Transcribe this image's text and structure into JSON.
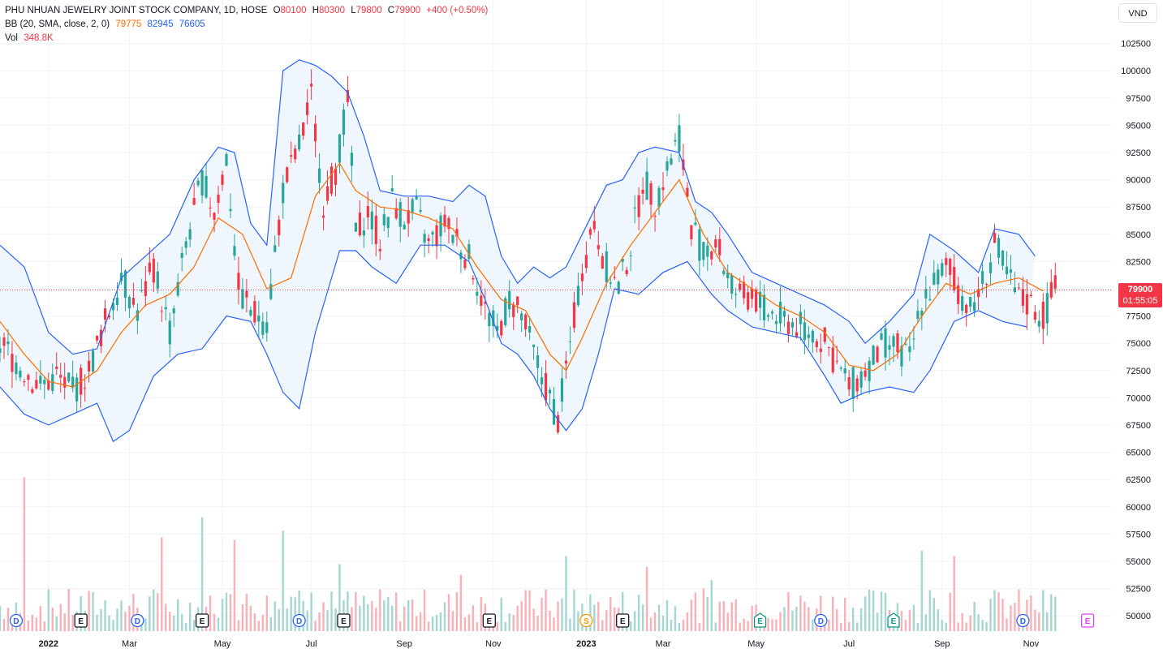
{
  "legend": {
    "title": "PHU NHUAN JEWELRY JOINT STOCK COMPANY, 1D, HOSE",
    "o_label": "O",
    "o": "80100",
    "h_label": "H",
    "h": "80300",
    "l_label": "L",
    "l": "79800",
    "c_label": "C",
    "c": "79900",
    "change": "+400 (+0.50%)",
    "bb_label": "BB (20, SMA, close, 2, 0)",
    "bb_basis": "79775",
    "bb_upper": "82945",
    "bb_lower": "76605",
    "vol_label": "Vol",
    "vol": "348.8K"
  },
  "currency": "VND",
  "last_price": {
    "price": "79900",
    "countdown": "01:55:05"
  },
  "colors": {
    "up": "#26a69a",
    "down": "#f23645",
    "bb_band": "#2962ff",
    "bb_basis": "#ff6d00",
    "band_fill": "#f0f6fd"
  },
  "chart_data": {
    "type": "candlestick",
    "y_ticks": [
      "50000",
      "52500",
      "55000",
      "57500",
      "60000",
      "62500",
      "65000",
      "67500",
      "70000",
      "72500",
      "75000",
      "77500",
      "80000",
      "82500",
      "85000",
      "87500",
      "90000",
      "92500",
      "95000",
      "97500",
      "100000",
      "102500"
    ],
    "x_ticks": [
      "2022",
      "Mar",
      "May",
      "Jul",
      "Sep",
      "Nov",
      "2023",
      "Mar",
      "May",
      "Jul",
      "Sep",
      "Nov"
    ],
    "price_ylim": [
      48000,
      104000
    ],
    "last_close": 79900,
    "close_path": [
      [
        0,
        75000
      ],
      [
        6,
        72500
      ],
      [
        10,
        71000
      ],
      [
        14,
        72000
      ],
      [
        18,
        70500
      ],
      [
        22,
        72500
      ],
      [
        26,
        77000
      ],
      [
        30,
        81000
      ],
      [
        34,
        78000
      ],
      [
        38,
        82000
      ],
      [
        42,
        76000
      ],
      [
        46,
        84000
      ],
      [
        50,
        90000
      ],
      [
        53,
        87000
      ],
      [
        56,
        92000
      ],
      [
        59,
        80000
      ],
      [
        62,
        78000
      ],
      [
        66,
        77000
      ],
      [
        70,
        89000
      ],
      [
        74,
        93000
      ],
      [
        77,
        97500
      ],
      [
        80,
        88000
      ],
      [
        83,
        91000
      ],
      [
        86,
        97000
      ],
      [
        88,
        85000
      ],
      [
        91,
        87000
      ],
      [
        94,
        84500
      ],
      [
        97,
        88000
      ],
      [
        100,
        86500
      ],
      [
        103,
        87000
      ],
      [
        106,
        84000
      ],
      [
        110,
        86000
      ],
      [
        114,
        84000
      ],
      [
        117,
        82000
      ],
      [
        120,
        78000
      ],
      [
        123,
        76000
      ],
      [
        126,
        79000
      ],
      [
        129,
        77500
      ],
      [
        132,
        74000
      ],
      [
        135,
        71000
      ],
      [
        138,
        68000
      ],
      [
        141,
        75000
      ],
      [
        144,
        82000
      ],
      [
        147,
        86000
      ],
      [
        150,
        82000
      ],
      [
        153,
        80000
      ],
      [
        156,
        84000
      ],
      [
        159,
        90000
      ],
      [
        162,
        88000
      ],
      [
        165,
        91000
      ],
      [
        168,
        94000
      ],
      [
        171,
        86000
      ],
      [
        174,
        83000
      ],
      [
        177,
        84500
      ],
      [
        180,
        81000
      ],
      [
        183,
        79000
      ],
      [
        186,
        79500
      ],
      [
        189,
        78000
      ],
      [
        192,
        77500
      ],
      [
        195,
        77000
      ],
      [
        198,
        76500
      ],
      [
        201,
        76000
      ],
      [
        204,
        75000
      ],
      [
        207,
        73000
      ],
      [
        210,
        71000
      ],
      [
        213,
        72000
      ],
      [
        216,
        73500
      ],
      [
        219,
        75000
      ],
      [
        222,
        74500
      ],
      [
        225,
        73500
      ],
      [
        228,
        79000
      ],
      [
        231,
        80500
      ],
      [
        234,
        82000
      ],
      [
        237,
        80000
      ],
      [
        240,
        78000
      ],
      [
        243,
        80500
      ],
      [
        246,
        84000
      ],
      [
        249,
        81500
      ],
      [
        252,
        79000
      ],
      [
        255,
        78500
      ],
      [
        258,
        77500
      ],
      [
        261,
        80000
      ]
    ],
    "bb_basis_path": [
      [
        0,
        77000
      ],
      [
        6,
        74000
      ],
      [
        12,
        71500
      ],
      [
        18,
        71000
      ],
      [
        24,
        72500
      ],
      [
        30,
        76000
      ],
      [
        36,
        78500
      ],
      [
        42,
        79500
      ],
      [
        48,
        82000
      ],
      [
        54,
        86500
      ],
      [
        60,
        85000
      ],
      [
        66,
        80000
      ],
      [
        72,
        81000
      ],
      [
        78,
        88500
      ],
      [
        84,
        91500
      ],
      [
        88,
        89000
      ],
      [
        94,
        87500
      ],
      [
        100,
        87200
      ],
      [
        106,
        86500
      ],
      [
        112,
        85500
      ],
      [
        118,
        82000
      ],
      [
        124,
        79000
      ],
      [
        130,
        78000
      ],
      [
        136,
        74000
      ],
      [
        140,
        72500
      ],
      [
        144,
        75500
      ],
      [
        150,
        80500
      ],
      [
        156,
        84000
      ],
      [
        162,
        87000
      ],
      [
        168,
        90000
      ],
      [
        174,
        85000
      ],
      [
        180,
        81500
      ],
      [
        186,
        80000
      ],
      [
        192,
        78500
      ],
      [
        198,
        77500
      ],
      [
        204,
        76000
      ],
      [
        210,
        73000
      ],
      [
        216,
        72500
      ],
      [
        222,
        74000
      ],
      [
        228,
        77500
      ],
      [
        234,
        80500
      ],
      [
        240,
        79500
      ],
      [
        246,
        80500
      ],
      [
        252,
        81000
      ],
      [
        258,
        79800
      ]
    ],
    "bb_upper_path": [
      [
        0,
        84000
      ],
      [
        6,
        82000
      ],
      [
        12,
        76000
      ],
      [
        18,
        74000
      ],
      [
        24,
        74500
      ],
      [
        30,
        81000
      ],
      [
        36,
        83000
      ],
      [
        42,
        85000
      ],
      [
        48,
        90000
      ],
      [
        54,
        93000
      ],
      [
        58,
        92500
      ],
      [
        62,
        86000
      ],
      [
        66,
        84000
      ],
      [
        70,
        100000
      ],
      [
        74,
        101000
      ],
      [
        78,
        100500
      ],
      [
        82,
        99500
      ],
      [
        86,
        98000
      ],
      [
        90,
        94000
      ],
      [
        94,
        89000
      ],
      [
        100,
        88500
      ],
      [
        106,
        88500
      ],
      [
        112,
        88000
      ],
      [
        116,
        89500
      ],
      [
        120,
        88500
      ],
      [
        124,
        83000
      ],
      [
        128,
        80500
      ],
      [
        132,
        82000
      ],
      [
        136,
        81000
      ],
      [
        140,
        82000
      ],
      [
        144,
        85000
      ],
      [
        150,
        89500
      ],
      [
        154,
        90000
      ],
      [
        158,
        92500
      ],
      [
        162,
        93000
      ],
      [
        168,
        92500
      ],
      [
        172,
        88000
      ],
      [
        176,
        87000
      ],
      [
        180,
        85000
      ],
      [
        186,
        81500
      ],
      [
        192,
        80500
      ],
      [
        198,
        79500
      ],
      [
        204,
        78500
      ],
      [
        210,
        77000
      ],
      [
        214,
        75000
      ],
      [
        220,
        77000
      ],
      [
        226,
        79500
      ],
      [
        230,
        85000
      ],
      [
        236,
        83500
      ],
      [
        242,
        81500
      ],
      [
        246,
        85500
      ],
      [
        252,
        85000
      ],
      [
        256,
        83000
      ]
    ],
    "bb_lower_path": [
      [
        0,
        71000
      ],
      [
        6,
        68500
      ],
      [
        12,
        67500
      ],
      [
        18,
        68500
      ],
      [
        24,
        69500
      ],
      [
        28,
        66000
      ],
      [
        32,
        67000
      ],
      [
        38,
        72000
      ],
      [
        44,
        74000
      ],
      [
        50,
        74500
      ],
      [
        56,
        77500
      ],
      [
        62,
        77000
      ],
      [
        66,
        74000
      ],
      [
        70,
        70500
      ],
      [
        74,
        69000
      ],
      [
        78,
        76000
      ],
      [
        84,
        83500
      ],
      [
        88,
        83500
      ],
      [
        92,
        82000
      ],
      [
        98,
        80500
      ],
      [
        104,
        84000
      ],
      [
        110,
        84000
      ],
      [
        116,
        82500
      ],
      [
        120,
        79000
      ],
      [
        124,
        75000
      ],
      [
        128,
        74000
      ],
      [
        132,
        72000
      ],
      [
        136,
        69000
      ],
      [
        140,
        67000
      ],
      [
        144,
        69000
      ],
      [
        148,
        74000
      ],
      [
        152,
        80000
      ],
      [
        158,
        79500
      ],
      [
        164,
        81500
      ],
      [
        170,
        82500
      ],
      [
        176,
        79500
      ],
      [
        180,
        78000
      ],
      [
        186,
        76500
      ],
      [
        192,
        76000
      ],
      [
        198,
        75500
      ],
      [
        204,
        72000
      ],
      [
        208,
        69500
      ],
      [
        214,
        70500
      ],
      [
        220,
        71000
      ],
      [
        226,
        70500
      ],
      [
        230,
        72500
      ],
      [
        236,
        77000
      ],
      [
        242,
        78000
      ],
      [
        248,
        77000
      ],
      [
        254,
        76500
      ]
    ],
    "volume_ylim": [
      0,
      1200000
    ],
    "volume_spikes": [
      [
        6,
        1150000
      ],
      [
        40,
        700000
      ],
      [
        50,
        850000
      ],
      [
        58,
        680000
      ],
      [
        70,
        750000
      ],
      [
        84,
        500000
      ],
      [
        114,
        420000
      ],
      [
        140,
        560000
      ],
      [
        160,
        480000
      ],
      [
        176,
        380000
      ],
      [
        228,
        600000
      ],
      [
        236,
        560000
      ]
    ],
    "events": [
      {
        "label": "D",
        "x": 4,
        "kind": "dividend"
      },
      {
        "label": "E",
        "x": 20,
        "kind": "earnings"
      },
      {
        "label": "D",
        "x": 34,
        "kind": "dividend"
      },
      {
        "label": "E",
        "x": 50,
        "kind": "earnings"
      },
      {
        "label": "D",
        "x": 74,
        "kind": "dividend"
      },
      {
        "label": "E",
        "x": 85,
        "kind": "earnings"
      },
      {
        "label": "E",
        "x": 121,
        "kind": "earnings"
      },
      {
        "label": "S",
        "x": 145,
        "kind": "split"
      },
      {
        "label": "E",
        "x": 154,
        "kind": "earnings"
      },
      {
        "label": "E",
        "x": 188,
        "kind": "earnings-future"
      },
      {
        "label": "D",
        "x": 203,
        "kind": "dividend"
      },
      {
        "label": "E",
        "x": 221,
        "kind": "earnings-future"
      },
      {
        "label": "D",
        "x": 253,
        "kind": "dividend"
      },
      {
        "label": "E",
        "x": 269,
        "kind": "earnings-upcoming"
      }
    ],
    "x_range": [
      0,
      275
    ],
    "x_tick_positions": [
      12,
      32,
      55,
      77,
      100,
      122,
      145,
      164,
      187,
      210,
      233,
      255
    ],
    "grid": true
  }
}
